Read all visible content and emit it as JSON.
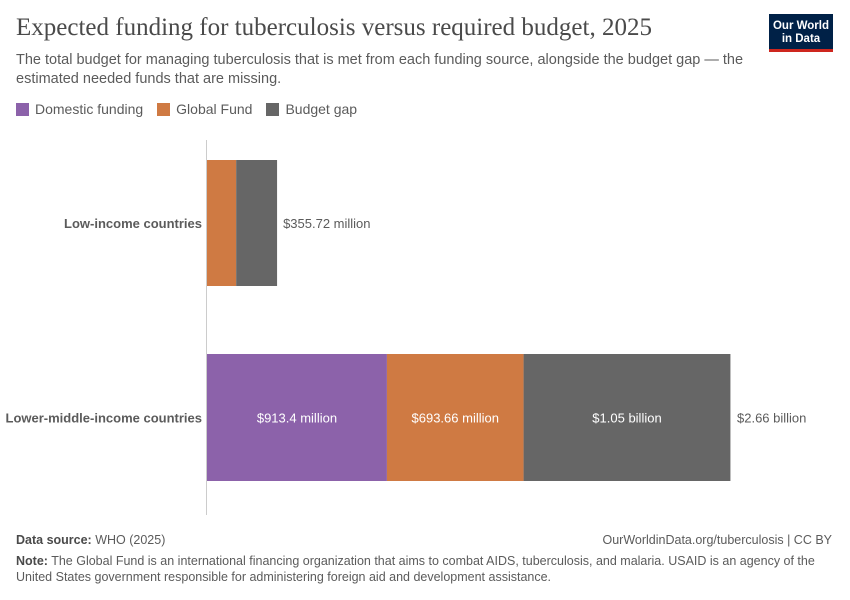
{
  "header": {
    "title": "Expected funding for tuberculosis versus required budget, 2025",
    "subtitle": "The total budget for managing tuberculosis that is met from each funding source, alongside the budget gap — the estimated needed funds that are missing.",
    "logo": "Our World in Data"
  },
  "colors": {
    "Domestic funding": "#8c62aa",
    "Global Fund": "#cf7a43",
    "Budget gap": "#666666"
  },
  "chart_data": {
    "type": "bar",
    "orientation": "horizontal",
    "stacked": true,
    "unit": "USD",
    "categories": [
      "Low-income countries",
      "Lower-middle-income countries"
    ],
    "series": [
      {
        "name": "Domestic funding",
        "values": [
          0,
          913400000.0
        ],
        "labels": [
          "",
          "$913.4 million"
        ]
      },
      {
        "name": "Global Fund",
        "values": [
          148000000.0,
          693660000.0
        ],
        "labels": [
          "",
          "$693.66 million"
        ]
      },
      {
        "name": "Budget gap",
        "values": [
          207720000.0,
          1050000000.0
        ],
        "labels": [
          "",
          "$1.05 billion"
        ]
      }
    ],
    "totals": [
      355720000.0,
      2660000000.0
    ],
    "total_labels": [
      "$355.72 million",
      "$2.66 billion"
    ],
    "legend": "top-left",
    "grid": false
  },
  "footer": {
    "source_label": "Data source:",
    "source": "WHO (2025)",
    "url": "OurWorldinData.org/tuberculosis | CC BY",
    "note_label": "Note:",
    "note": "The Global Fund is an international financing organization that aims to combat AIDS, tuberculosis, and malaria. USAID is an agency of the United States government responsible for administering foreign aid and development assistance."
  }
}
